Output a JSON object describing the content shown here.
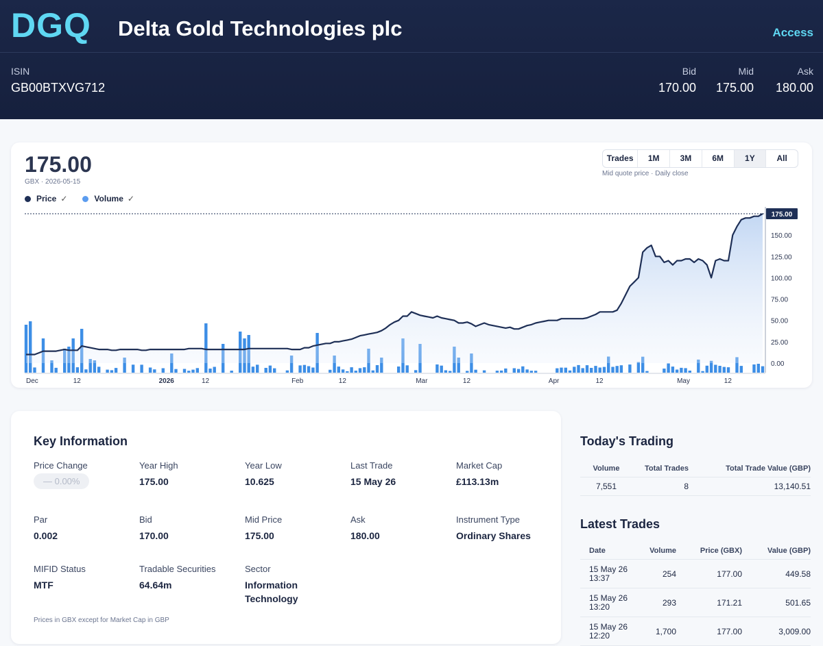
{
  "header": {
    "logo": "DGQ",
    "company": "Delta Gold Technologies plc",
    "access_label": "Access",
    "isin_label": "ISIN",
    "isin_value": "GB00BTXVG712",
    "quotes": [
      {
        "label": "Bid",
        "value": "170.00"
      },
      {
        "label": "Mid",
        "value": "175.00"
      },
      {
        "label": "Ask",
        "value": "180.00"
      }
    ]
  },
  "chart_panel": {
    "price": "175.00",
    "currency_date": "GBX · 2026-05-15",
    "legend": [
      {
        "name": "Price",
        "color": "#1e2f56"
      },
      {
        "name": "Volume",
        "color": "#5b9cef"
      }
    ],
    "checkmark": "✓",
    "ranges": [
      "Trades",
      "1M",
      "3M",
      "6M",
      "1Y",
      "All"
    ],
    "active_range": "1Y",
    "range_note": "Mid quote price · Daily close",
    "current_label": "175.00"
  },
  "chart_data": {
    "type": "line",
    "price_color": "#1e2f56",
    "volume_color": "#3d8ee6",
    "ylim": [
      0,
      175
    ],
    "yticks": [
      "0.00",
      "25.00",
      "50.00",
      "75.00",
      "100.00",
      "125.00",
      "150.00"
    ],
    "xticks": [
      {
        "label": "Dec",
        "i": 0
      },
      {
        "label": "12",
        "i": 11
      },
      {
        "label": "2026",
        "i": 31,
        "bold": true
      },
      {
        "label": "12",
        "i": 41
      },
      {
        "label": "Feb",
        "i": 62
      },
      {
        "label": "12",
        "i": 73
      },
      {
        "label": "Mar",
        "i": 91
      },
      {
        "label": "12",
        "i": 102
      },
      {
        "label": "Apr",
        "i": 122
      },
      {
        "label": "12",
        "i": 133
      },
      {
        "label": "May",
        "i": 152
      },
      {
        "label": "12",
        "i": 163
      }
    ],
    "price": [
      10,
      10,
      10,
      12,
      14,
      14,
      14,
      14,
      15,
      16,
      15,
      15,
      15,
      20,
      19,
      18,
      17,
      16,
      16,
      16,
      15,
      15,
      16,
      16,
      16,
      16,
      16,
      15,
      15,
      16,
      16,
      16,
      16,
      16,
      16,
      16,
      16,
      16,
      17,
      17,
      17,
      17,
      16,
      16,
      16,
      16,
      16,
      16,
      16,
      16,
      16,
      16,
      17,
      17,
      17,
      17,
      17,
      17,
      17,
      17,
      17,
      17,
      16,
      16,
      16,
      18,
      18,
      20,
      21,
      22,
      23,
      23,
      25,
      25,
      26,
      27,
      28,
      30,
      32,
      33,
      34,
      35,
      36,
      38,
      41,
      45,
      48,
      50,
      55,
      55,
      60,
      58,
      56,
      55,
      54,
      53,
      55,
      53,
      52,
      51,
      50,
      47,
      47,
      48,
      46,
      43,
      45,
      47,
      45,
      44,
      43,
      42,
      41,
      42,
      40,
      40,
      42,
      44,
      45,
      47,
      48,
      49,
      50,
      50,
      50,
      52,
      52,
      52,
      52,
      52,
      52,
      53,
      55,
      57,
      60,
      60,
      60,
      60,
      62,
      70,
      80,
      90,
      95,
      100,
      130,
      135,
      138,
      125,
      125,
      118,
      120,
      115,
      120,
      120,
      122,
      122,
      118,
      122,
      120,
      115,
      100,
      120,
      122,
      120,
      120,
      150,
      160,
      168,
      170,
      170,
      172,
      172,
      175
    ]
  },
  "key_info": {
    "title": "Key Information",
    "items": [
      {
        "label": "Price Change",
        "value": "—  0.00%",
        "pill": true
      },
      {
        "label": "Year High",
        "value": "175.00"
      },
      {
        "label": "Year Low",
        "value": "10.625"
      },
      {
        "label": "Last Trade",
        "value": "15 May 26"
      },
      {
        "label": "Market Cap",
        "value": "£113.13m"
      },
      {
        "label": "Par",
        "value": "0.002"
      },
      {
        "label": "Bid",
        "value": "170.00"
      },
      {
        "label": "Mid Price",
        "value": "175.00"
      },
      {
        "label": "Ask",
        "value": "180.00"
      },
      {
        "label": "Instrument Type",
        "value": "Ordinary Shares"
      },
      {
        "label": "MIFID Status",
        "value": "MTF"
      },
      {
        "label": "Tradable Securities",
        "value": "64.64m"
      },
      {
        "label": "Sector",
        "value": "Information Technology"
      }
    ],
    "note": "Prices in GBX except for Market Cap in GBP"
  },
  "todays_trading": {
    "title": "Today's Trading",
    "headers": [
      "Volume",
      "Total Trades",
      "Total Trade Value (GBP)"
    ],
    "row": [
      "7,551",
      "8",
      "13,140.51"
    ]
  },
  "latest_trades": {
    "title": "Latest Trades",
    "headers": [
      "Date",
      "Volume",
      "Price (GBX)",
      "Value (GBP)"
    ],
    "rows": [
      [
        "15 May 26",
        "13:37",
        "254",
        "177.00",
        "449.58"
      ],
      [
        "15 May 26",
        "13:20",
        "293",
        "171.21",
        "501.65"
      ],
      [
        "15 May 26",
        "12:20",
        "1,700",
        "177.00",
        "3,009.00"
      ]
    ]
  }
}
